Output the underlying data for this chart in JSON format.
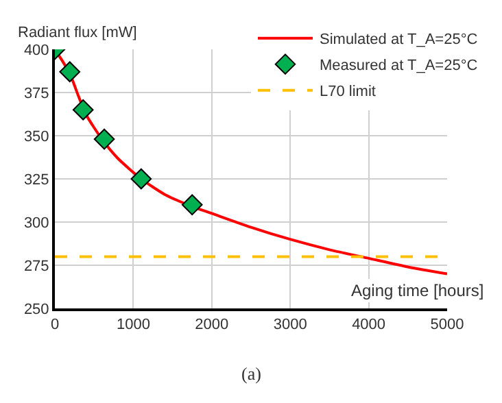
{
  "chart_data": {
    "type": "line",
    "xlabel": "Aging time [hours]",
    "ylabel": "Radiant flux [mW]",
    "annotations": [
      "(a)"
    ],
    "series": [
      {
        "name": "Simulated at T_A=25°C",
        "color": "#ff0000",
        "marker": "none",
        "line_style": "solid",
        "x": [
          0,
          100,
          200,
          300,
          400,
          600,
          800,
          1100,
          1400,
          1750,
          2000,
          2500,
          3000,
          3500,
          4000,
          4500,
          5000
        ],
        "values": [
          400,
          393,
          385,
          373,
          362,
          348,
          337,
          325,
          316,
          309,
          305,
          297,
          290,
          284,
          279,
          274,
          270
        ]
      },
      {
        "name": "Measured at T_A=25°C",
        "type": "scatter",
        "color": "#00b050",
        "marker": "diamond",
        "x": [
          0,
          190,
          360,
          630,
          1100,
          1750
        ],
        "values": [
          400,
          387,
          365,
          348,
          325,
          310
        ]
      }
    ],
    "ref_lines": [
      {
        "axis": "y",
        "value": 280,
        "label": "L70 limit",
        "color": "#ffc000",
        "line_style": "dashed"
      }
    ],
    "xlim": [
      0,
      5000
    ],
    "xticks": [
      0,
      1000,
      2000,
      3000,
      4000,
      5000
    ],
    "ylim": [
      250,
      400
    ],
    "yticks": [
      250,
      275,
      300,
      325,
      350,
      375,
      400
    ],
    "grid": true,
    "legend": "top right"
  }
}
